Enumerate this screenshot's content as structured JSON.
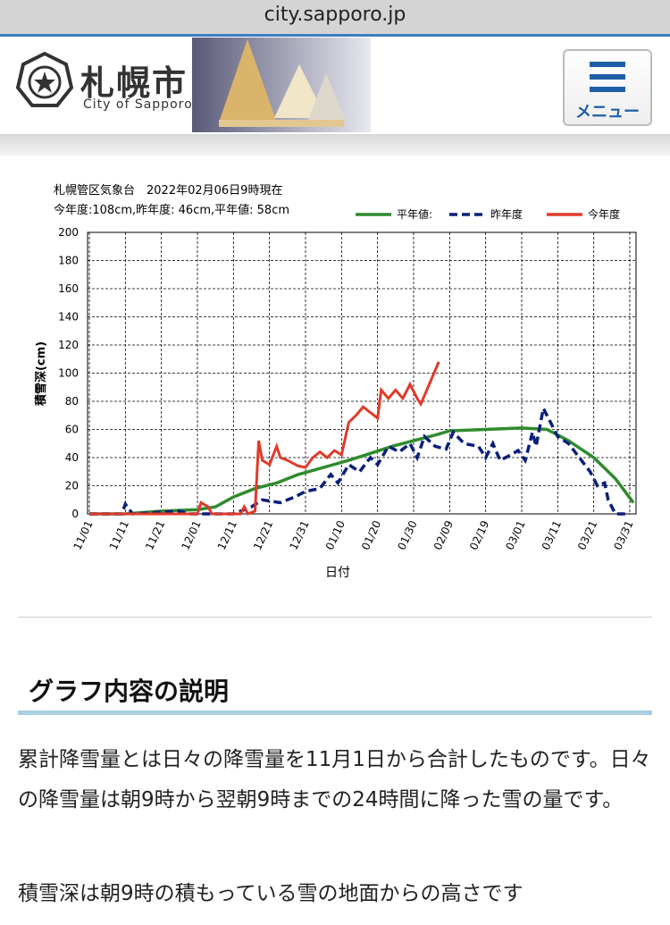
{
  "url_bar": {
    "url": "city.sapporo.jp"
  },
  "header": {
    "logo_text": "札幌市",
    "logo_sub": "City of Sapporo",
    "menu": "メニュー"
  },
  "chart_data": {
    "type": "line",
    "title": "札幌管区気象台　2022年02月06日9時現在",
    "subtitle": "今年度:108cm,昨年度: 46cm,平年値: 58cm",
    "y_label": "積雪深(cm)",
    "x_label": "日付",
    "xlim": [
      "11/01",
      "03/31"
    ],
    "xticks": [
      "11/01",
      "11/11",
      "11/21",
      "12/01",
      "12/11",
      "12/21",
      "12/31",
      "01/10",
      "01/20",
      "01/30",
      "02/09",
      "02/19",
      "03/01",
      "03/11",
      "03/21",
      "03/31"
    ],
    "ylim": [
      0,
      200
    ],
    "yticks": [
      0,
      20,
      40,
      60,
      80,
      100,
      120,
      140,
      160,
      180,
      200
    ],
    "grid": true,
    "series": [
      {
        "name": "平年値:",
        "color": "#2e8b2e",
        "dash": "solid",
        "x": [
          "11/01",
          "11/11",
          "11/21",
          "12/01",
          "12/06",
          "12/11",
          "12/17",
          "12/23",
          "12/29",
          "01/05",
          "01/12",
          "01/18",
          "01/24",
          "01/30",
          "02/05",
          "02/09",
          "02/19",
          "03/01",
          "03/08",
          "03/14",
          "03/21",
          "03/27",
          "04/01"
        ],
        "values": [
          0,
          0,
          2,
          3,
          5,
          12,
          18,
          22,
          28,
          33,
          38,
          43,
          48,
          52,
          56,
          59,
          60,
          61,
          60,
          52,
          40,
          25,
          8
        ]
      },
      {
        "name": "昨年度",
        "color": "#0a1f7a",
        "dash": "dashed",
        "x": [
          "11/01",
          "11/10",
          "11/11",
          "11/13",
          "11/26",
          "11/29",
          "12/11",
          "12/16",
          "12/19",
          "12/24",
          "12/28",
          "12/31",
          "01/04",
          "01/07",
          "01/09",
          "01/12",
          "01/15",
          "01/18",
          "01/20",
          "01/23",
          "01/26",
          "01/29",
          "01/31",
          "02/02",
          "02/05",
          "02/08",
          "02/10",
          "02/13",
          "02/17",
          "02/19",
          "02/21",
          "02/23",
          "02/26",
          "02/28",
          "03/02",
          "03/04",
          "03/05",
          "03/07",
          "03/09",
          "03/11",
          "03/14",
          "03/17",
          "03/20",
          "03/22",
          "03/24",
          "03/25",
          "03/27",
          "03/31"
        ],
        "values": [
          0,
          0,
          7,
          0,
          2,
          0,
          0,
          5,
          10,
          8,
          12,
          16,
          18,
          28,
          22,
          35,
          30,
          40,
          35,
          48,
          44,
          50,
          40,
          55,
          48,
          46,
          58,
          50,
          48,
          40,
          50,
          38,
          42,
          45,
          38,
          58,
          48,
          75,
          65,
          55,
          50,
          40,
          30,
          20,
          22,
          10,
          0,
          0
        ]
      },
      {
        "name": "今年度",
        "color": "#e03a2a",
        "dash": "solid",
        "x": [
          "11/01",
          "12/01",
          "12/02",
          "12/04",
          "12/05",
          "12/13",
          "12/14",
          "12/15",
          "12/17",
          "12/18",
          "12/19",
          "12/21",
          "12/23",
          "12/24",
          "12/26",
          "12/29",
          "12/31",
          "01/02",
          "01/04",
          "01/06",
          "01/08",
          "01/10",
          "01/12",
          "01/14",
          "01/16",
          "01/18",
          "01/20",
          "01/21",
          "01/23",
          "01/25",
          "01/27",
          "01/29",
          "01/31",
          "02/01",
          "02/06"
        ],
        "values": [
          0,
          0,
          8,
          5,
          0,
          0,
          5,
          0,
          2,
          52,
          38,
          35,
          48,
          40,
          38,
          34,
          33,
          40,
          44,
          40,
          45,
          42,
          65,
          70,
          76,
          72,
          68,
          88,
          82,
          88,
          82,
          92,
          82,
          78,
          108
        ]
      }
    ]
  },
  "section": {
    "heading": "グラフ内容の説明",
    "paragraphs": [
      "累計降雪量とは日々の降雪量を11月1日から合計したものです。日々の降雪量は朝9時から翌朝9時までの24時間に降った雪の量です。",
      "積雪深は朝9時の積もっている雪の地面からの高さです"
    ]
  }
}
